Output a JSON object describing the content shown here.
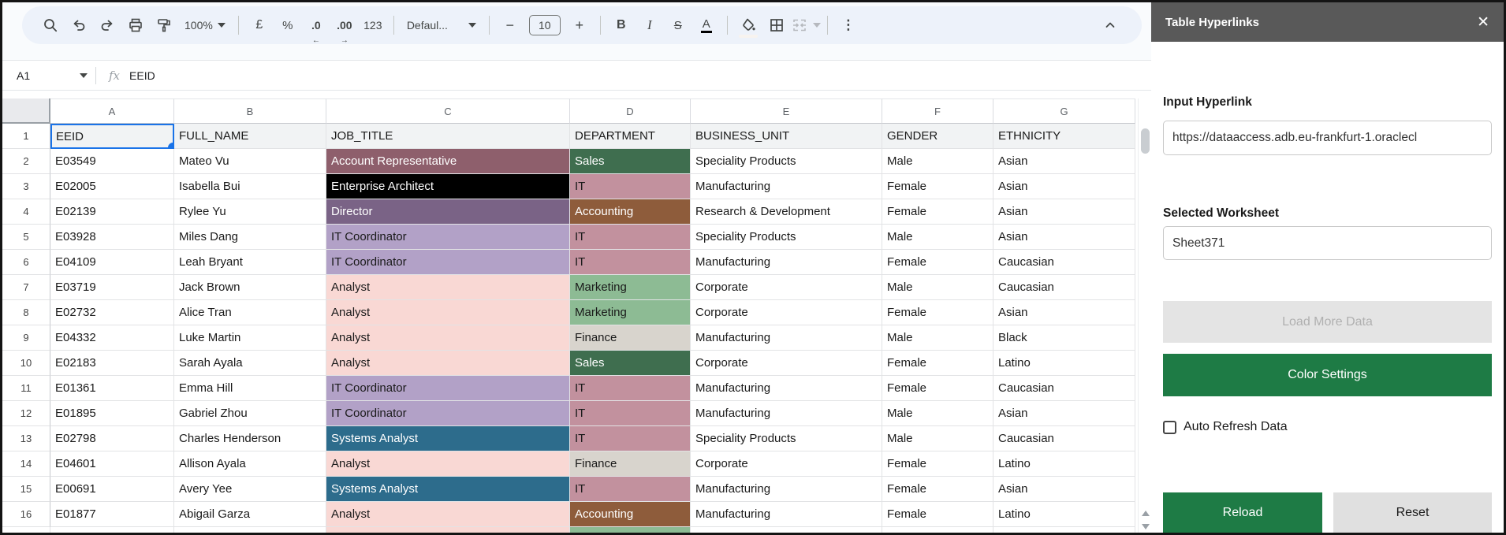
{
  "toolbar": {
    "zoom_value": "100%",
    "currency_label": "£",
    "percent_label": "%",
    "decrease_decimal_label": ".0",
    "increase_decimal_label": ".00",
    "number_format_label": "123",
    "font_name": "Defaul...",
    "minus_label": "−",
    "font_size": "10",
    "plus_label": "+",
    "bold_label": "B",
    "italic_label": "I",
    "strikethrough_label": "S",
    "text_color_label": "A",
    "kebab_label": "⋮"
  },
  "formula_bar": {
    "cell_ref": "A1",
    "fx_label": "fx",
    "value": "EEID"
  },
  "grid": {
    "column_letters": [
      "A",
      "B",
      "C",
      "D",
      "E",
      "F",
      "G"
    ],
    "header_row": {
      "row_num": "1",
      "cells": [
        "EEID",
        "FULL_NAME",
        "JOB_TITLE",
        "DEPARTMENT",
        "BUSINESS_UNIT",
        "GENDER",
        "ETHNICITY"
      ]
    },
    "selection": {
      "cell": "A1",
      "color": "#1a73e8"
    },
    "rows": [
      {
        "n": "2",
        "eeid": "E03549",
        "full_name": "Mateo Vu",
        "job_title": "Account Representative",
        "job_bg": "#8e5f6c",
        "job_fg": "#ffffff",
        "department": "Sales",
        "dept_bg": "#3f6e4f",
        "dept_fg": "#ffffff",
        "business_unit": "Speciality Products",
        "gender": "Male",
        "ethnicity": "Asian"
      },
      {
        "n": "3",
        "eeid": "E02005",
        "full_name": "Isabella Bui",
        "job_title": "Enterprise Architect",
        "job_bg": "#000000",
        "job_fg": "#ffffff",
        "department": "IT",
        "dept_bg": "#c2919e",
        "dept_fg": "#1a1a1a",
        "business_unit": "Manufacturing",
        "gender": "Female",
        "ethnicity": "Asian"
      },
      {
        "n": "4",
        "eeid": "E02139",
        "full_name": "Rylee Yu",
        "job_title": "Director",
        "job_bg": "#7a6386",
        "job_fg": "#ffffff",
        "department": "Accounting",
        "dept_bg": "#8e5c3b",
        "dept_fg": "#ffffff",
        "business_unit": "Research & Development",
        "gender": "Female",
        "ethnicity": "Asian"
      },
      {
        "n": "5",
        "eeid": "E03928",
        "full_name": "Miles Dang",
        "job_title": "IT Coordinator",
        "job_bg": "#b2a1c7",
        "job_fg": "#1a1a1a",
        "department": "IT",
        "dept_bg": "#c2919e",
        "dept_fg": "#1a1a1a",
        "business_unit": "Speciality Products",
        "gender": "Male",
        "ethnicity": "Asian"
      },
      {
        "n": "6",
        "eeid": "E04109",
        "full_name": "Leah Bryant",
        "job_title": "IT Coordinator",
        "job_bg": "#b2a1c7",
        "job_fg": "#1a1a1a",
        "department": "IT",
        "dept_bg": "#c2919e",
        "dept_fg": "#1a1a1a",
        "business_unit": "Manufacturing",
        "gender": "Female",
        "ethnicity": "Caucasian"
      },
      {
        "n": "7",
        "eeid": "E03719",
        "full_name": "Jack Brown",
        "job_title": "Analyst",
        "job_bg": "#f9d8d4",
        "job_fg": "#1a1a1a",
        "department": "Marketing",
        "dept_bg": "#8dbb94",
        "dept_fg": "#1a1a1a",
        "business_unit": "Corporate",
        "gender": "Male",
        "ethnicity": "Caucasian"
      },
      {
        "n": "8",
        "eeid": "E02732",
        "full_name": "Alice Tran",
        "job_title": "Analyst",
        "job_bg": "#f9d8d4",
        "job_fg": "#1a1a1a",
        "department": "Marketing",
        "dept_bg": "#8dbb94",
        "dept_fg": "#1a1a1a",
        "business_unit": "Corporate",
        "gender": "Female",
        "ethnicity": "Asian"
      },
      {
        "n": "9",
        "eeid": "E04332",
        "full_name": "Luke Martin",
        "job_title": "Analyst",
        "job_bg": "#f9d8d4",
        "job_fg": "#1a1a1a",
        "department": "Finance",
        "dept_bg": "#d8d4cd",
        "dept_fg": "#1a1a1a",
        "business_unit": "Manufacturing",
        "gender": "Male",
        "ethnicity": "Black"
      },
      {
        "n": "10",
        "eeid": "E02183",
        "full_name": "Sarah Ayala",
        "job_title": "Analyst",
        "job_bg": "#f9d8d4",
        "job_fg": "#1a1a1a",
        "department": "Sales",
        "dept_bg": "#3f6e4f",
        "dept_fg": "#ffffff",
        "business_unit": "Corporate",
        "gender": "Female",
        "ethnicity": "Latino"
      },
      {
        "n": "11",
        "eeid": "E01361",
        "full_name": "Emma Hill",
        "job_title": "IT Coordinator",
        "job_bg": "#b2a1c7",
        "job_fg": "#1a1a1a",
        "department": "IT",
        "dept_bg": "#c2919e",
        "dept_fg": "#1a1a1a",
        "business_unit": "Manufacturing",
        "gender": "Female",
        "ethnicity": "Caucasian"
      },
      {
        "n": "12",
        "eeid": "E01895",
        "full_name": "Gabriel Zhou",
        "job_title": "IT Coordinator",
        "job_bg": "#b2a1c7",
        "job_fg": "#1a1a1a",
        "department": "IT",
        "dept_bg": "#c2919e",
        "dept_fg": "#1a1a1a",
        "business_unit": "Manufacturing",
        "gender": "Male",
        "ethnicity": "Asian"
      },
      {
        "n": "13",
        "eeid": "E02798",
        "full_name": "Charles Henderson",
        "job_title": "Systems Analyst",
        "job_bg": "#2d6c8c",
        "job_fg": "#ffffff",
        "department": "IT",
        "dept_bg": "#c2919e",
        "dept_fg": "#1a1a1a",
        "business_unit": "Speciality Products",
        "gender": "Male",
        "ethnicity": "Caucasian"
      },
      {
        "n": "14",
        "eeid": "E04601",
        "full_name": "Allison Ayala",
        "job_title": "Analyst",
        "job_bg": "#f9d8d4",
        "job_fg": "#1a1a1a",
        "department": "Finance",
        "dept_bg": "#d8d4cd",
        "dept_fg": "#1a1a1a",
        "business_unit": "Corporate",
        "gender": "Female",
        "ethnicity": "Latino"
      },
      {
        "n": "15",
        "eeid": "E00691",
        "full_name": "Avery Yee",
        "job_title": "Systems Analyst",
        "job_bg": "#2d6c8c",
        "job_fg": "#ffffff",
        "department": "IT",
        "dept_bg": "#c2919e",
        "dept_fg": "#1a1a1a",
        "business_unit": "Manufacturing",
        "gender": "Female",
        "ethnicity": "Asian"
      },
      {
        "n": "16",
        "eeid": "E01877",
        "full_name": "Abigail Garza",
        "job_title": "Analyst",
        "job_bg": "#f9d8d4",
        "job_fg": "#1a1a1a",
        "department": "Accounting",
        "dept_bg": "#8e5c3b",
        "dept_fg": "#ffffff",
        "business_unit": "Manufacturing",
        "gender": "Female",
        "ethnicity": "Latino"
      }
    ],
    "partial_row_colors": {
      "job_title_bg": "#f9d8d4",
      "department_bg": "#8dbb94"
    }
  },
  "panel": {
    "title": "Table Hyperlinks",
    "close_label": "✕",
    "input_hyperlink_label": "Input Hyperlink",
    "hyperlink_value": "https://dataaccess.adb.eu-frankfurt-1.oraclecl",
    "selected_worksheet_label": "Selected Worksheet",
    "worksheet_value": "Sheet371",
    "load_more_label": "Load More Data",
    "color_settings_label": "Color Settings",
    "auto_refresh_label": "Auto Refresh Data",
    "auto_refresh_checked": false,
    "reload_label": "Reload",
    "reset_label": "Reset",
    "accent_green": "#1e7b45"
  }
}
